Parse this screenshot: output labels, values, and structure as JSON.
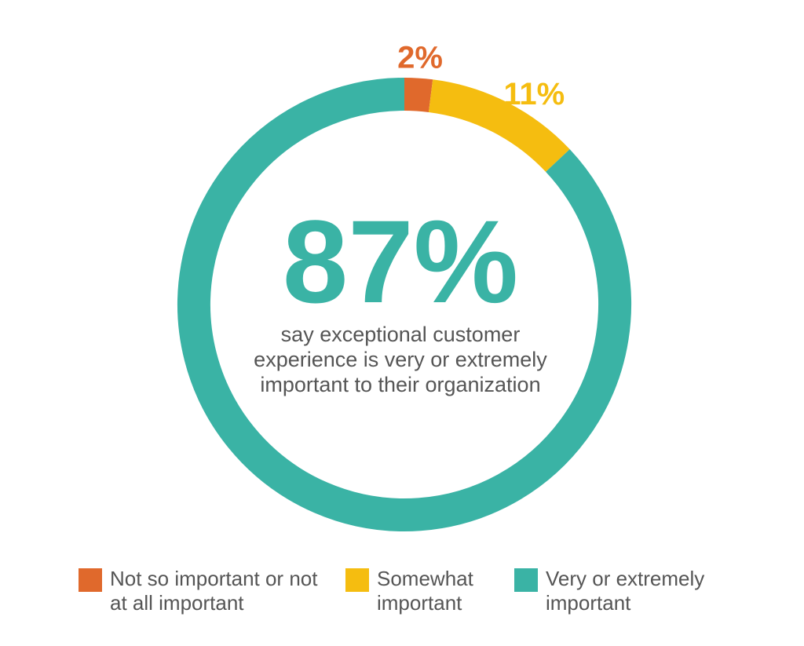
{
  "chart_data": {
    "type": "donut",
    "categories": [
      "Not so important or not at all important",
      "Somewhat important",
      "Very or extremely important"
    ],
    "values": [
      2,
      11,
      87
    ],
    "value_labels": [
      "2%",
      "11%",
      "87%"
    ],
    "colors": [
      "#e0692c",
      "#f5bd10",
      "#3ab3a5"
    ],
    "annotation": [
      "say exceptional customer",
      "experience is very or extremely",
      "important to their organization"
    ],
    "legend": "bottom"
  }
}
